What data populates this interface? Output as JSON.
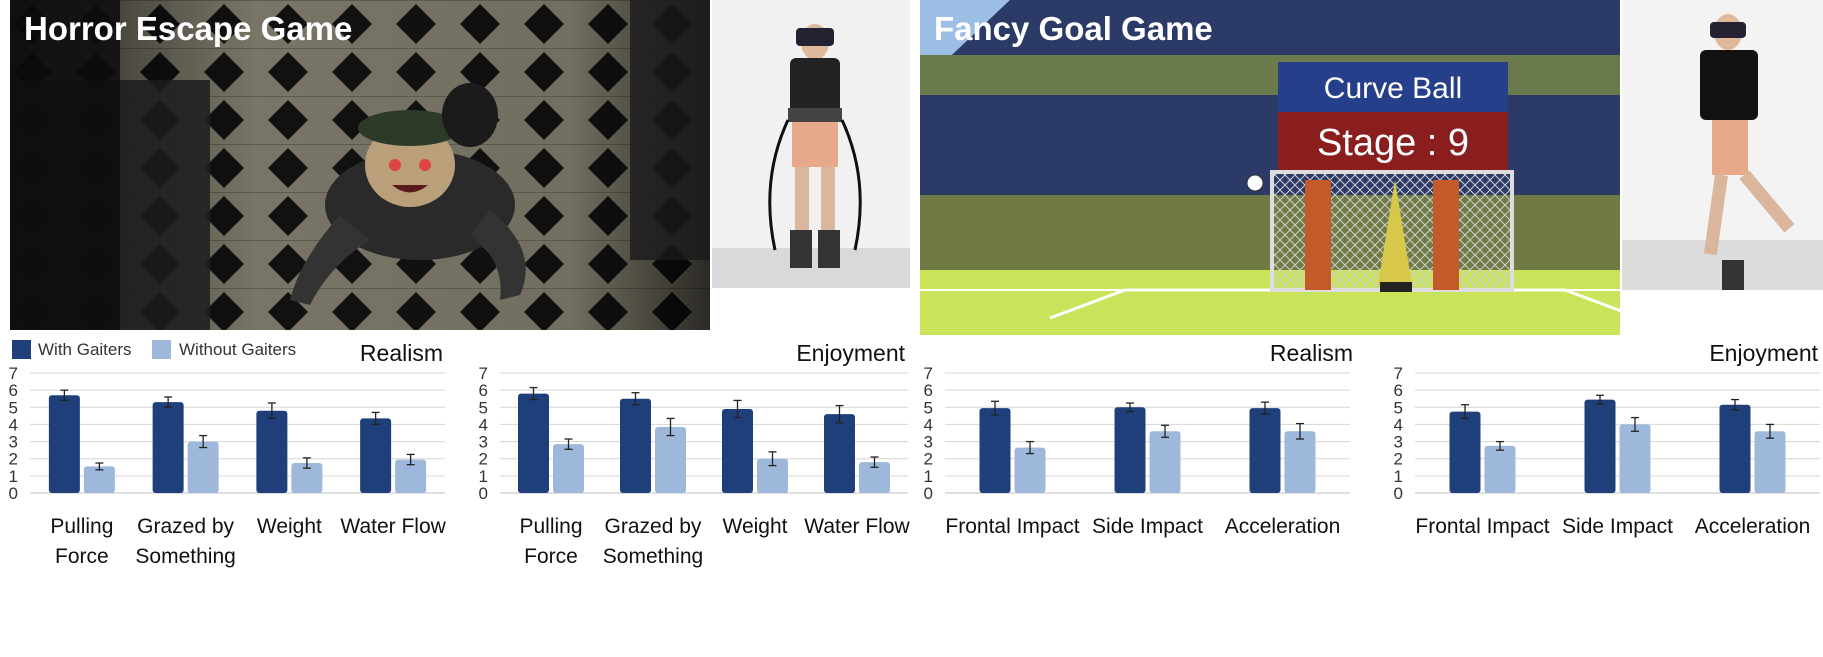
{
  "games": [
    {
      "title": "Horror Escape Game"
    },
    {
      "title": "Fancy Goal Game",
      "scoreboard": {
        "line1": "Curve Ball",
        "line2": "Stage : 9"
      }
    }
  ],
  "legend": [
    {
      "label": "With Gaiters",
      "color": "#1f3f7a"
    },
    {
      "label": "Without Gaiters",
      "color": "#9db8db"
    }
  ],
  "chart_data": [
    {
      "type": "bar",
      "title": "Realism",
      "ylim": [
        0,
        7
      ],
      "yticks": [
        "0",
        "1",
        "2",
        "3",
        "4",
        "5",
        "6",
        "7"
      ],
      "categories": [
        [
          "Pulling",
          "Force"
        ],
        [
          "Grazed by",
          "Something"
        ],
        [
          "Weight"
        ],
        [
          "Water Flow"
        ]
      ],
      "series": [
        {
          "name": "With Gaiters",
          "values": [
            5.7,
            5.3,
            4.8,
            4.35
          ],
          "errors": [
            0.3,
            0.3,
            0.45,
            0.35
          ]
        },
        {
          "name": "Without Gaiters",
          "values": [
            1.55,
            3.0,
            1.75,
            1.95
          ],
          "errors": [
            0.2,
            0.35,
            0.3,
            0.3
          ]
        }
      ]
    },
    {
      "type": "bar",
      "title": "Enjoyment",
      "ylim": [
        0,
        7
      ],
      "yticks": [
        "0",
        "1",
        "2",
        "3",
        "4",
        "5",
        "6",
        "7"
      ],
      "categories": [
        [
          "Pulling",
          "Force"
        ],
        [
          "Grazed by",
          "Something"
        ],
        [
          "Weight"
        ],
        [
          "Water Flow"
        ]
      ],
      "series": [
        {
          "name": "With Gaiters",
          "values": [
            5.8,
            5.5,
            4.9,
            4.6
          ],
          "errors": [
            0.35,
            0.35,
            0.5,
            0.5
          ]
        },
        {
          "name": "Without Gaiters",
          "values": [
            2.85,
            3.85,
            2.0,
            1.8
          ],
          "errors": [
            0.3,
            0.5,
            0.4,
            0.3
          ]
        }
      ]
    },
    {
      "type": "bar",
      "title": "Realism",
      "ylim": [
        0,
        7
      ],
      "yticks": [
        "0",
        "1",
        "2",
        "3",
        "4",
        "5",
        "6",
        "7"
      ],
      "categories": [
        [
          "Frontal Impact"
        ],
        [
          "Side Impact"
        ],
        [
          "Acceleration"
        ]
      ],
      "series": [
        {
          "name": "With Gaiters",
          "values": [
            4.95,
            5.0,
            4.95
          ],
          "errors": [
            0.4,
            0.25,
            0.35
          ]
        },
        {
          "name": "Without Gaiters",
          "values": [
            2.65,
            3.6,
            3.6
          ],
          "errors": [
            0.35,
            0.35,
            0.45
          ]
        }
      ]
    },
    {
      "type": "bar",
      "title": "Enjoyment",
      "ylim": [
        0,
        7
      ],
      "yticks": [
        "0",
        "1",
        "2",
        "3",
        "4",
        "5",
        "6",
        "7"
      ],
      "categories": [
        [
          "Frontal Impact"
        ],
        [
          "Side Impact"
        ],
        [
          "Acceleration"
        ]
      ],
      "series": [
        {
          "name": "With Gaiters",
          "values": [
            4.75,
            5.45,
            5.15
          ],
          "errors": [
            0.4,
            0.25,
            0.3
          ]
        },
        {
          "name": "Without Gaiters",
          "values": [
            2.75,
            4.0,
            3.6
          ],
          "errors": [
            0.25,
            0.4,
            0.4
          ]
        }
      ]
    }
  ]
}
